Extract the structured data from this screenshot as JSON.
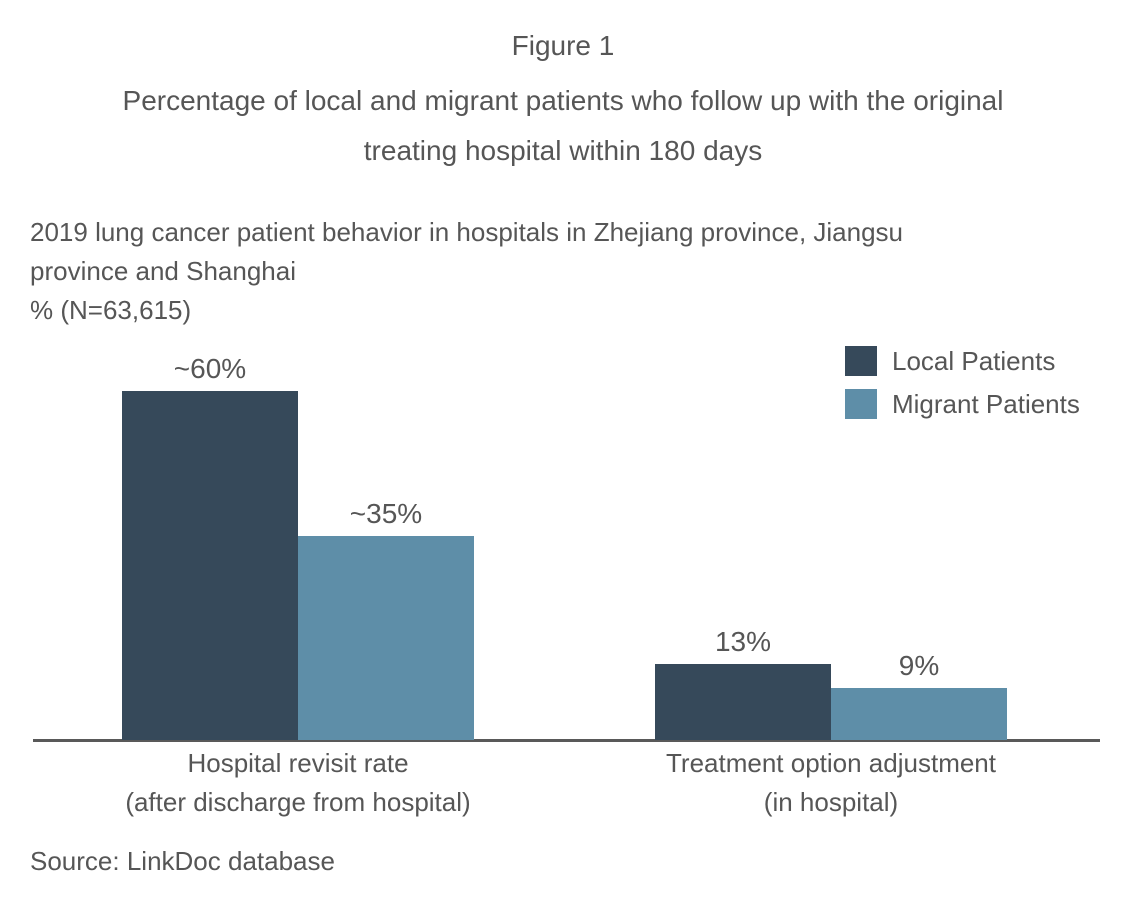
{
  "figure": {
    "label": "Figure 1",
    "title": "Percentage of local and migrant patients who follow up with the original treating hospital within 180 days",
    "subtitle": "2019 lung cancer patient behavior in hospitals in Zhejiang province, Jiangsu province and Shanghai",
    "unit": "% (N=63,615)",
    "source": "Source: LinkDoc database"
  },
  "chart_data": {
    "type": "bar",
    "categories": [
      {
        "label": "Hospital revisit rate",
        "sublabel": "(after discharge from hospital)"
      },
      {
        "label": "Treatment option adjustment",
        "sublabel": "(in hospital)"
      }
    ],
    "series": [
      {
        "name": "Local Patients",
        "color": "#36495a",
        "values": [
          60,
          13
        ],
        "value_labels": [
          "~60%",
          "13%"
        ]
      },
      {
        "name": "Migrant Patients",
        "color": "#5e8ea8",
        "values": [
          35,
          9
        ],
        "value_labels": [
          "~35%",
          "9%"
        ]
      }
    ],
    "title": "Percentage of local and migrant patients who follow up with the original treating hospital within 180 days",
    "xlabel": "",
    "ylabel": "% (N=63,615)",
    "ylim": [
      0,
      65
    ],
    "grid": false,
    "value_labels_shown": true,
    "legend_position": "top-right",
    "axis_color": "#595959",
    "text_color": "#565656",
    "background_color": "#ffffff"
  }
}
